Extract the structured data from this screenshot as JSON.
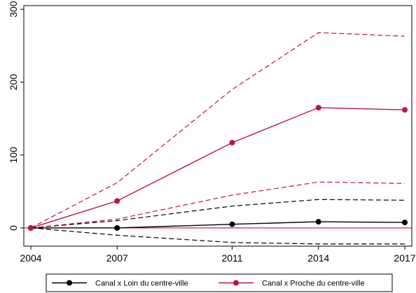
{
  "chart_data": {
    "type": "line",
    "x": [
      2004,
      2007,
      2011,
      2014,
      2017
    ],
    "xlim": [
      2004,
      2017
    ],
    "ylim": [
      -25,
      305
    ],
    "yticks": [
      0,
      100,
      200,
      300
    ],
    "xticks": [
      2004,
      2007,
      2011,
      2014,
      2017
    ],
    "grid": false,
    "legend_position": "bottom",
    "reference_line": {
      "y": 0,
      "color": "#c0143c"
    },
    "series": [
      {
        "name": "Canal x Loin du centre-ville",
        "color": "#000000",
        "values": [
          0,
          0,
          5,
          8.5,
          7.5
        ],
        "ci_lower": [
          0,
          -10,
          -20,
          -22,
          -22
        ],
        "ci_upper": [
          0,
          10,
          30,
          39,
          38
        ]
      },
      {
        "name": "Canal x Proche du centre-ville",
        "color": "#c0143c",
        "values": [
          0,
          37,
          117,
          165,
          162
        ],
        "ci_lower": [
          0,
          12,
          45,
          63,
          61
        ],
        "ci_upper": [
          0,
          62,
          190,
          268,
          263
        ]
      }
    ]
  }
}
